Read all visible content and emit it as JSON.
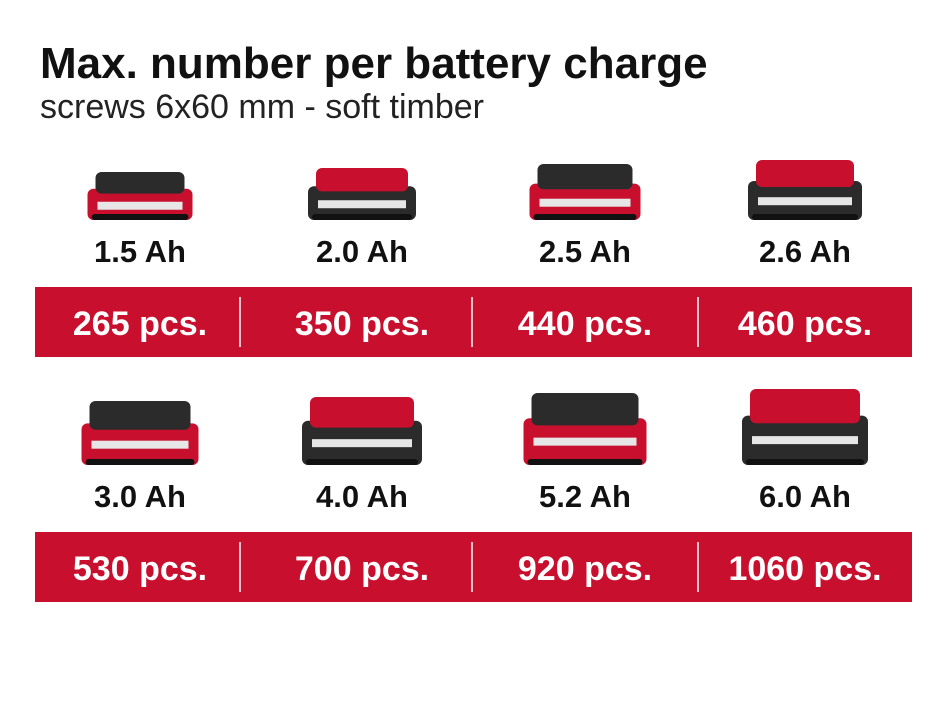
{
  "header": {
    "title": "Max. number per battery charge",
    "subtitle": "screws 6x60 mm - soft timber"
  },
  "rows": [
    [
      {
        "capacity": "1.5 Ah",
        "count": "265 pcs."
      },
      {
        "capacity": "2.0 Ah",
        "count": "350 pcs."
      },
      {
        "capacity": "2.5 Ah",
        "count": "440 pcs."
      },
      {
        "capacity": "2.6 Ah",
        "count": "460 pcs."
      }
    ],
    [
      {
        "capacity": "3.0 Ah",
        "count": "530 pcs."
      },
      {
        "capacity": "4.0 Ah",
        "count": "700 pcs."
      },
      {
        "capacity": "5.2 Ah",
        "count": "920 pcs."
      },
      {
        "capacity": "6.0 Ah",
        "count": "1060 pcs."
      }
    ]
  ]
}
